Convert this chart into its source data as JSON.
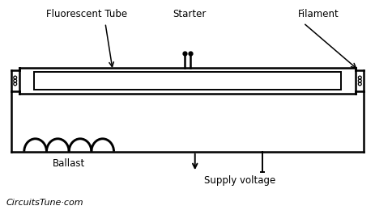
{
  "background_color": "#ffffff",
  "line_color": "#000000",
  "labels": {
    "fluorescent_tube": "Fluorescent Tube",
    "starter": "Starter",
    "filament": "Filament",
    "ballast": "Ballast",
    "supply_voltage": "Supply voltage",
    "brand": "CircuitsTune·com"
  },
  "figsize": [
    4.63,
    2.6
  ],
  "dpi": 100
}
